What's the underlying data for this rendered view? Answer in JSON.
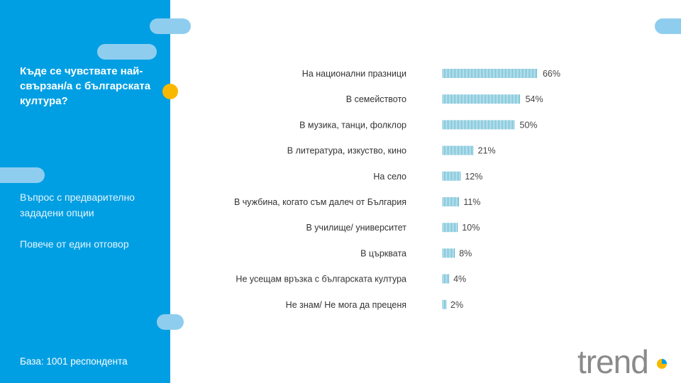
{
  "sidebar": {
    "question": "Къде се чувствате най-свързан/а с българската култура?",
    "note_1": "Въпрос с предварително зададени опции",
    "note_2": "Повече от един отговор",
    "base": "База:  1001 респондента"
  },
  "logo": {
    "text": "trend"
  },
  "colors": {
    "sidebar": "#009fe3",
    "bar": "#3fa9c9",
    "accent_dot": "#f9b800",
    "pill": "#8fcdef"
  },
  "chart_data": {
    "type": "bar",
    "orientation": "horizontal",
    "title": "Къде се чувствате най-свързан/а с българската култура?",
    "categories": [
      "На национални празници",
      "В семейството",
      "В музика, танци, фолклор",
      "В литература, изкуство, кино",
      "На село",
      "В чужбина, когато съм далеч от България",
      "В училище/ университет",
      "В църквата",
      "Не усещам връзка с българската култура",
      "Не знам/ Не мога да преценя"
    ],
    "values": [
      66,
      54,
      50,
      21,
      12,
      11,
      10,
      8,
      4,
      2
    ],
    "value_labels": [
      "66%",
      "54%",
      "50%",
      "21%",
      "12%",
      "11%",
      "10%",
      "8%",
      "4%",
      "2%"
    ],
    "unit": "%",
    "grid": false
  }
}
